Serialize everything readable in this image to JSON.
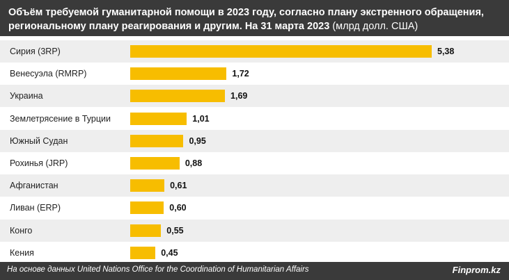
{
  "header": {
    "title": "Объём требуемой гуманитарной помощи в 2023 году, согласно плану экстренного обращения, региональному плану реагирования и другим. На 31 марта 2023",
    "unit": "(млрд долл. США)"
  },
  "footer": {
    "source": "На основе данных United Nations Office for the Coordination of Humanitarian Affairs",
    "brand": "Finprom.kz"
  },
  "colors": {
    "bar": "#f7bd00",
    "header_bg": "#3a3a3a",
    "band": "#eeeeee"
  },
  "chart_data": {
    "type": "bar",
    "orientation": "horizontal",
    "title": "Объём требуемой гуманитарной помощи в 2023 году, согласно плану экстренного обращения, региональному плану реагирования и другим. На 31 марта 2023",
    "unit": "(млрд долл. США)",
    "categories": [
      "Сирия (3RP)",
      "Венесуэла (RMRP)",
      "Украина",
      "Землетрясение в Турции",
      "Южный Судан",
      "Рохинья (JRP)",
      "Афганистан",
      "Ливан (ERP)",
      "Конго",
      "Кения"
    ],
    "values": [
      5.38,
      1.72,
      1.69,
      1.01,
      0.95,
      0.88,
      0.61,
      0.6,
      0.55,
      0.45
    ],
    "value_labels": [
      "5,38",
      "1,72",
      "1,69",
      "1,01",
      "0,95",
      "0,88",
      "0,61",
      "0,60",
      "0,55",
      "0,45"
    ],
    "xlim": [
      0,
      5.38
    ],
    "grid": false
  }
}
